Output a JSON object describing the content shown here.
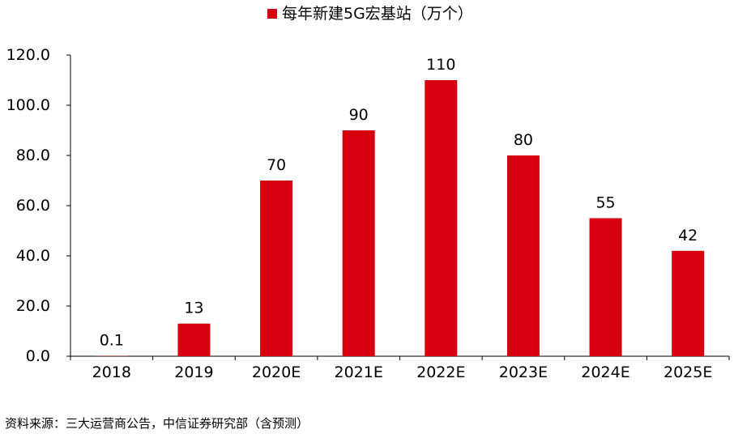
{
  "chart_data": {
    "type": "bar",
    "categories": [
      "2018",
      "2019",
      "2020E",
      "2021E",
      "2022E",
      "2023E",
      "2024E",
      "2025E"
    ],
    "series": [
      {
        "name": "每年新建5G宏基站（万个）",
        "values": [
          0.1,
          13,
          70,
          90,
          110,
          80,
          55,
          42
        ],
        "color": "#d7000f"
      }
    ],
    "data_labels": [
      "0.1",
      "13",
      "70",
      "90",
      "110",
      "80",
      "55",
      "42"
    ],
    "y_ticks": [
      "0.0",
      "20.0",
      "40.0",
      "60.0",
      "80.0",
      "100.0",
      "120.0"
    ],
    "ylim": [
      0,
      120
    ],
    "legend_position": "top-center",
    "grid": false
  },
  "footer": {
    "source": "资料来源：三大运营商公告，中信证券研究部（含预测）"
  }
}
